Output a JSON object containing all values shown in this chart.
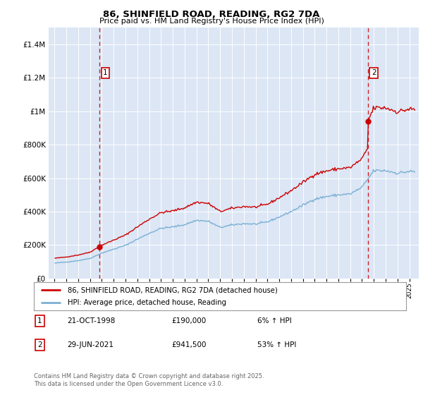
{
  "title": "86, SHINFIELD ROAD, READING, RG2 7DA",
  "subtitle": "Price paid vs. HM Land Registry's House Price Index (HPI)",
  "legend_line1": "86, SHINFIELD ROAD, READING, RG2 7DA (detached house)",
  "legend_line2": "HPI: Average price, detached house, Reading",
  "annotation1_date": "21-OCT-1998",
  "annotation1_price": "£190,000",
  "annotation1_hpi": "6% ↑ HPI",
  "annotation1_year": 1998.8,
  "annotation1_value": 190000,
  "annotation2_date": "29-JUN-2021",
  "annotation2_price": "£941,500",
  "annotation2_hpi": "53% ↑ HPI",
  "annotation2_year": 2021.5,
  "annotation2_value": 941500,
  "footer": "Contains HM Land Registry data © Crown copyright and database right 2025.\nThis data is licensed under the Open Government Licence v3.0.",
  "bg_color": "#ffffff",
  "plot_bg": "#dce6f5",
  "red_line_color": "#cc0000",
  "blue_line_color": "#7ab0d4",
  "dashed_color": "#cc0000",
  "y_max": 1500000,
  "y_ticks": [
    0,
    200000,
    400000,
    600000,
    800000,
    1000000,
    1200000,
    1400000
  ],
  "x_min": 1994.5,
  "x_max": 2025.8
}
